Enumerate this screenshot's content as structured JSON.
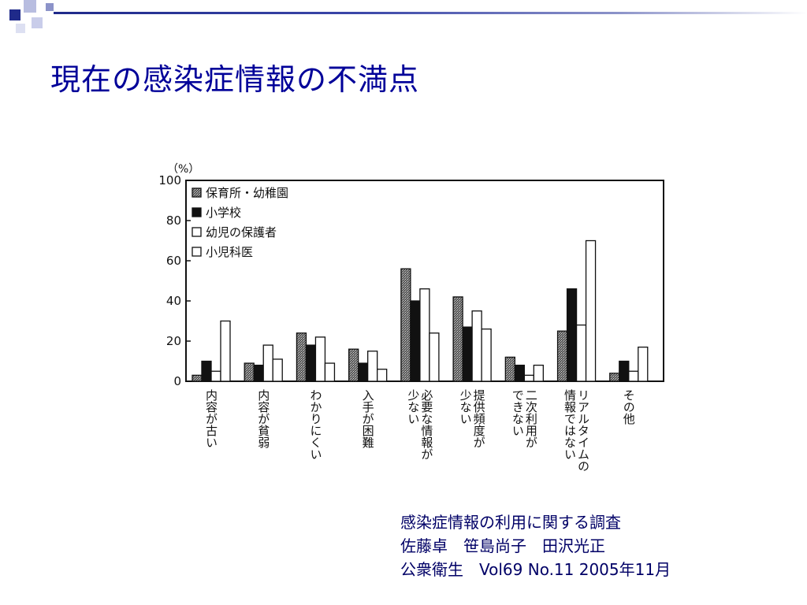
{
  "slide": {
    "title": "現在の感染症情報の不満点",
    "accent_color": "#1f2a8a",
    "source_lines": [
      "感染症情報の利用に関する調査",
      "佐藤卓　笹島尚子　田沢光正",
      "公衆衛生　Vol69 No.11 2005年11月"
    ]
  },
  "chart_data": {
    "type": "bar",
    "title": "",
    "ylabel": "（%）",
    "xlabel": "",
    "ylim": [
      0,
      100
    ],
    "yticks": [
      "0",
      "20",
      "40",
      "60",
      "80",
      "100"
    ],
    "grid": false,
    "legend_position": "top-left",
    "categories": [
      "内容が古い",
      "内容が貧弱",
      "わかりにくい",
      "入手が困難",
      "必要な情報が少ない",
      "提供頻度が少ない",
      "二次利用ができない",
      "リアルタイムの情報ではない",
      "その他"
    ],
    "category_lines": [
      [
        "内容が古い"
      ],
      [
        "内容が貧弱"
      ],
      [
        "わかりにくい"
      ],
      [
        "入手が困難"
      ],
      [
        "必要な情報が",
        "少ない"
      ],
      [
        "提供頻度が",
        "少ない"
      ],
      [
        "二次利用が",
        "できない"
      ],
      [
        "リアルタイムの",
        "情報ではない"
      ],
      [
        "その他"
      ]
    ],
    "series": [
      {
        "name": "保育所・幼稚園",
        "pattern": "stipple",
        "values": [
          3,
          9,
          24,
          16,
          56,
          42,
          12,
          25,
          4
        ]
      },
      {
        "name": "小学校",
        "pattern": "black",
        "values": [
          10,
          8,
          18,
          9,
          40,
          27,
          8,
          46,
          10
        ]
      },
      {
        "name": "幼児の保護者",
        "pattern": "white",
        "values": [
          5,
          18,
          22,
          15,
          46,
          35,
          3,
          28,
          5
        ]
      },
      {
        "name": "小児科医",
        "pattern": "white",
        "values": [
          30,
          11,
          9,
          6,
          24,
          26,
          8,
          70,
          17
        ]
      }
    ]
  }
}
